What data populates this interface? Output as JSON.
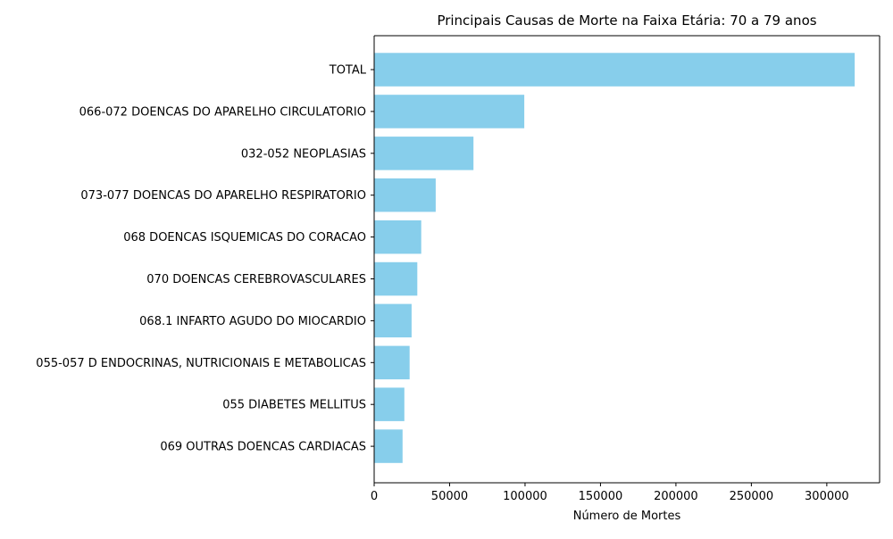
{
  "chart_data": {
    "type": "bar",
    "orientation": "horizontal",
    "title": "Principais Causas de Morte na Faixa Etária: 70 a 79 anos",
    "xlabel": "Número de Mortes",
    "ylabel": "",
    "categories": [
      "TOTAL",
      "066-072 DOENCAS DO APARELHO CIRCULATORIO",
      "032-052 NEOPLASIAS",
      "073-077 DOENCAS DO APARELHO RESPIRATORIO",
      "068 DOENCAS ISQUEMICAS DO CORACAO",
      "070 DOENCAS CEREBROVASCULARES",
      "068.1 INFARTO AGUDO DO MIOCARDIO",
      "055-057 D ENDOCRINAS, NUTRICIONAIS E METABOLICAS",
      "055 DIABETES MELLITUS",
      "069 OUTRAS DOENCAS CARDIACAS"
    ],
    "values": [
      318500,
      99500,
      65800,
      40800,
      31200,
      28600,
      24800,
      23500,
      20000,
      18800
    ],
    "xlim": [
      0,
      335000
    ],
    "xticks": [
      0,
      50000,
      100000,
      150000,
      200000,
      250000,
      300000
    ],
    "grid": false,
    "bar_color": "#87CEEB"
  }
}
